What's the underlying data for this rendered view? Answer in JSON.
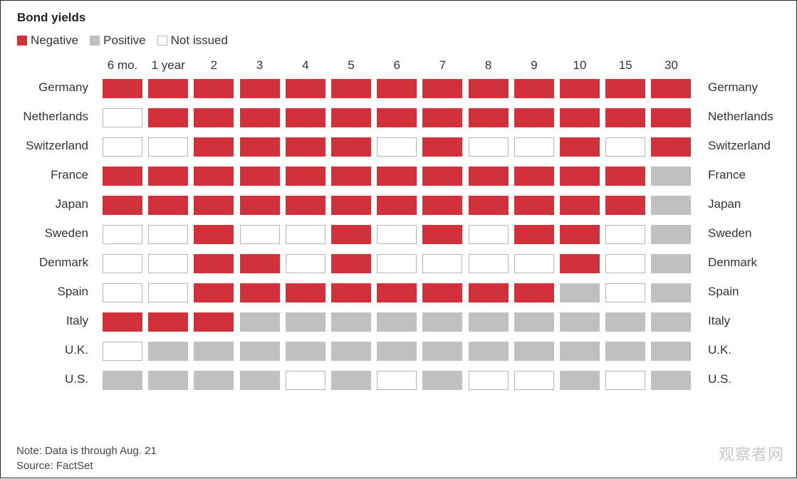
{
  "chart_data": {
    "type": "heatmap",
    "title": "Bond yields",
    "legend": [
      {
        "key": "N",
        "label": "Negative",
        "color": "#d0313a"
      },
      {
        "key": "P",
        "label": "Positive",
        "color": "#c0c0c0"
      },
      {
        "key": "X",
        "label": "Not issued",
        "color": "#ffffff",
        "border": "#b5b5b5"
      }
    ],
    "maturities": [
      "6 mo.",
      "1 year",
      "2",
      "3",
      "4",
      "5",
      "6",
      "7",
      "8",
      "9",
      "10",
      "15",
      "30"
    ],
    "countries": [
      {
        "name": "Germany",
        "values": [
          "N",
          "N",
          "N",
          "N",
          "N",
          "N",
          "N",
          "N",
          "N",
          "N",
          "N",
          "N",
          "N"
        ]
      },
      {
        "name": "Netherlands",
        "values": [
          "X",
          "N",
          "N",
          "N",
          "N",
          "N",
          "N",
          "N",
          "N",
          "N",
          "N",
          "N",
          "N"
        ]
      },
      {
        "name": "Switzerland",
        "values": [
          "X",
          "X",
          "N",
          "N",
          "N",
          "N",
          "X",
          "N",
          "X",
          "X",
          "N",
          "X",
          "N"
        ]
      },
      {
        "name": "France",
        "values": [
          "N",
          "N",
          "N",
          "N",
          "N",
          "N",
          "N",
          "N",
          "N",
          "N",
          "N",
          "N",
          "P"
        ]
      },
      {
        "name": "Japan",
        "values": [
          "N",
          "N",
          "N",
          "N",
          "N",
          "N",
          "N",
          "N",
          "N",
          "N",
          "N",
          "N",
          "P"
        ]
      },
      {
        "name": "Sweden",
        "values": [
          "X",
          "X",
          "N",
          "X",
          "X",
          "N",
          "X",
          "N",
          "X",
          "N",
          "N",
          "X",
          "P"
        ]
      },
      {
        "name": "Denmark",
        "values": [
          "X",
          "X",
          "N",
          "N",
          "X",
          "N",
          "X",
          "X",
          "X",
          "X",
          "N",
          "X",
          "P"
        ]
      },
      {
        "name": "Spain",
        "values": [
          "X",
          "X",
          "N",
          "N",
          "N",
          "N",
          "N",
          "N",
          "N",
          "N",
          "P",
          "X",
          "P"
        ]
      },
      {
        "name": "Italy",
        "values": [
          "N",
          "N",
          "N",
          "P",
          "P",
          "P",
          "P",
          "P",
          "P",
          "P",
          "P",
          "P",
          "P"
        ]
      },
      {
        "name": "U.K.",
        "values": [
          "X",
          "P",
          "P",
          "P",
          "P",
          "P",
          "P",
          "P",
          "P",
          "P",
          "P",
          "P",
          "P"
        ]
      },
      {
        "name": "U.S.",
        "values": [
          "P",
          "P",
          "P",
          "P",
          "X",
          "P",
          "X",
          "P",
          "X",
          "X",
          "P",
          "X",
          "P"
        ]
      }
    ]
  },
  "notes": {
    "note": "Note: Data is through Aug. 21",
    "source": "Source: FactSet"
  },
  "watermark": "观察者网"
}
